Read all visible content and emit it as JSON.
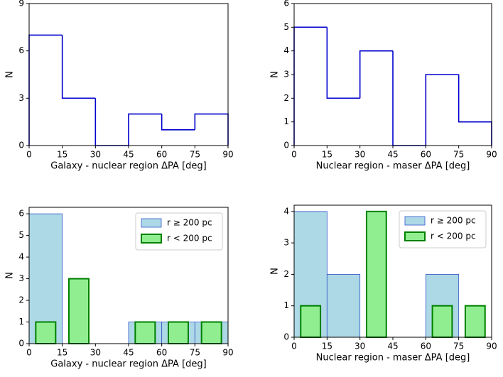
{
  "chart_data": [
    {
      "type": "histogram",
      "histtype": "step",
      "bins": [
        0,
        15,
        30,
        45,
        60,
        75,
        90
      ],
      "values": [
        7,
        3,
        0,
        2,
        1,
        2
      ],
      "color": "#0000cd",
      "xlabel": "Galaxy - nuclear region ΔPA [deg]",
      "ylabel": "N",
      "xlim": [
        0,
        90
      ],
      "xticks": [
        0,
        15,
        30,
        45,
        60,
        75,
        90
      ],
      "ylim": [
        0,
        9
      ],
      "yticks": [
        0,
        3,
        6,
        9
      ]
    },
    {
      "type": "histogram",
      "histtype": "step",
      "bins": [
        0,
        15,
        30,
        45,
        60,
        75,
        90
      ],
      "values": [
        5,
        2,
        4,
        0,
        3,
        1
      ],
      "color": "#0000cd",
      "xlabel": "Nuclear region - maser ΔPA [deg]",
      "ylabel": "N",
      "xlim": [
        0,
        90
      ],
      "xticks": [
        0,
        15,
        30,
        45,
        60,
        75,
        90
      ],
      "ylim": [
        0,
        6
      ],
      "yticks": [
        0,
        1,
        2,
        3,
        4,
        5,
        6
      ]
    },
    {
      "type": "histogram",
      "histtype": "bar",
      "bins": [
        0,
        15,
        30,
        45,
        60,
        75,
        90
      ],
      "series": [
        {
          "name": "r ≥ 200 pc",
          "color": "#add8e6",
          "edgecolor": "#3355cc",
          "values": [
            6,
            0,
            0,
            1,
            1,
            1
          ]
        },
        {
          "name": "r < 200 pc",
          "color": "#90ee90",
          "edgecolor": "#008000",
          "values": [
            1,
            3,
            0,
            1,
            1,
            1
          ]
        }
      ],
      "legend": "upper right",
      "xlabel": "Galaxy - nuclear region ΔPA [deg]",
      "ylabel": "N",
      "xlim": [
        0,
        90
      ],
      "xticks": [
        0,
        15,
        30,
        45,
        60,
        75,
        90
      ],
      "ylim": [
        0,
        6.3
      ],
      "yticks": [
        0,
        1,
        2,
        3,
        4,
        5,
        6
      ]
    },
    {
      "type": "histogram",
      "histtype": "bar",
      "bins": [
        0,
        15,
        30,
        45,
        60,
        75,
        90
      ],
      "series": [
        {
          "name": "r ≥ 200 pc",
          "color": "#add8e6",
          "edgecolor": "#3355cc",
          "values": [
            4,
            2,
            0,
            0,
            2,
            0
          ]
        },
        {
          "name": "r < 200 pc",
          "color": "#90ee90",
          "edgecolor": "#008000",
          "values": [
            1,
            0,
            4,
            0,
            1,
            1
          ]
        }
      ],
      "legend": "upper right",
      "xlabel": "Nuclear region - maser ΔPA [deg]",
      "ylabel": "N",
      "xlim": [
        0,
        90
      ],
      "xticks": [
        0,
        15,
        30,
        45,
        60,
        75,
        90
      ],
      "ylim": [
        0,
        4.2
      ],
      "yticks": [
        0,
        1,
        2,
        3,
        4
      ]
    }
  ]
}
